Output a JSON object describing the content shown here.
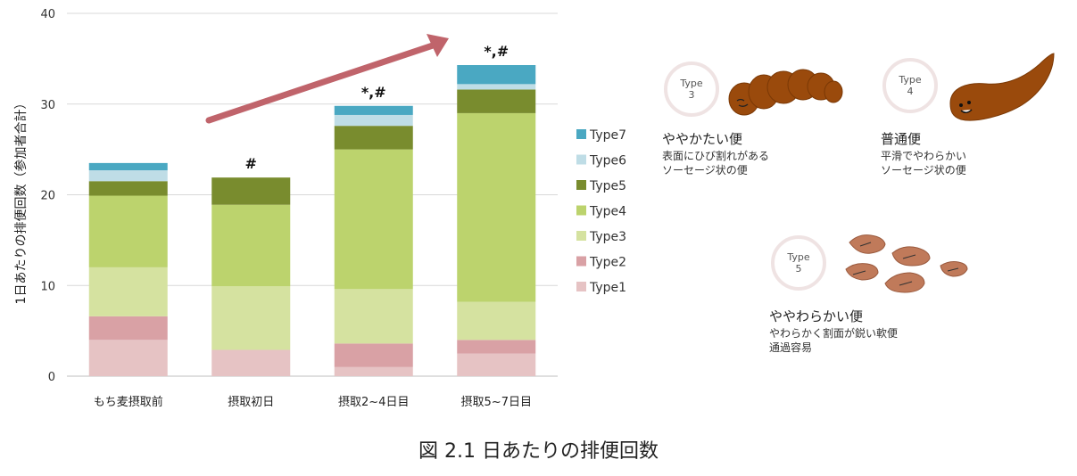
{
  "chart_data": {
    "type": "bar",
    "stacked": true,
    "categories": [
      "もち麦摂取前",
      "摂取初日",
      "摂取2~4日目",
      "摂取5~7日目"
    ],
    "series": [
      {
        "name": "Type1",
        "color": "#e6c3c4",
        "values": [
          4.0,
          2.9,
          1.0,
          2.5
        ]
      },
      {
        "name": "Type2",
        "color": "#d9a1a5",
        "values": [
          2.6,
          0.0,
          2.6,
          1.5
        ]
      },
      {
        "name": "Type3",
        "color": "#d5e2a0",
        "values": [
          5.4,
          7.0,
          6.0,
          4.2
        ]
      },
      {
        "name": "Type4",
        "color": "#bcd36d",
        "values": [
          7.9,
          9.0,
          15.4,
          20.8
        ]
      },
      {
        "name": "Type5",
        "color": "#798c2e",
        "values": [
          1.6,
          3.0,
          2.6,
          2.6
        ]
      },
      {
        "name": "Type6",
        "color": "#bfdde6",
        "values": [
          1.2,
          0.0,
          1.2,
          0.6
        ]
      },
      {
        "name": "Type7",
        "color": "#4aa8c2",
        "values": [
          0.8,
          0.0,
          1.0,
          2.1
        ]
      }
    ],
    "annotations": [
      "",
      "#",
      "*,#",
      "*,#"
    ],
    "ylabel": "1日あたりの排便回数（参加者合計）",
    "xlabel": "",
    "ylim": [
      0,
      40
    ],
    "yticks": [
      0,
      10,
      20,
      30,
      40
    ],
    "grid": true,
    "legend_position": "right",
    "trend_arrow_color": "#c0646b"
  },
  "caption": "図 2.1 日あたりの排便回数",
  "stool_types": [
    {
      "badge_type": "Type",
      "badge_num": "3",
      "title": "ややかたい便",
      "desc": [
        "表面にひび割れがある",
        "ソーセージ状の便"
      ]
    },
    {
      "badge_type": "Type",
      "badge_num": "4",
      "title": "普通便",
      "desc": [
        "平滑でやわらかい",
        "ソーセージ状の便"
      ]
    },
    {
      "badge_type": "Type",
      "badge_num": "5",
      "title": "ややわらかい便",
      "desc": [
        "やわらかく割面が鋭い軟便",
        "通過容易"
      ]
    }
  ],
  "colors": {
    "stool_dark": "#9a4a0c",
    "stool_light": "#c07a5a"
  }
}
